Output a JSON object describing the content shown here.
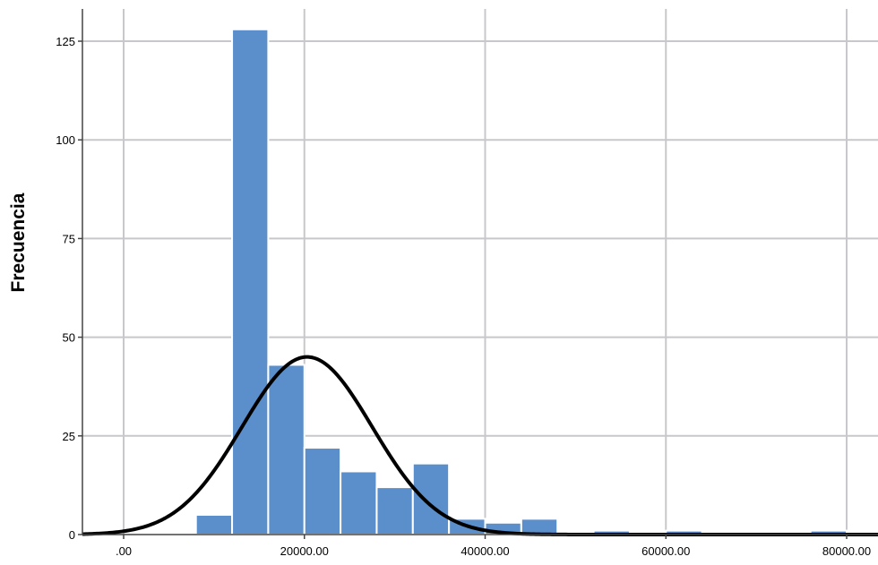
{
  "chart_data": {
    "type": "bar",
    "subtype": "histogram",
    "title": "",
    "xlabel": "",
    "ylabel": "Frecuencia",
    "xlim": [
      -4700,
      80000
    ],
    "ylim": [
      0,
      125
    ],
    "grid": true,
    "bar_color": "#5b8fcc",
    "bar_edge_color": "#ffffff",
    "curve_color": "#000000",
    "grid_color": "#c8c8cc",
    "x_ticks": [
      {
        "value": 0,
        "label": ".00"
      },
      {
        "value": 20000,
        "label": "20000.00"
      },
      {
        "value": 40000,
        "label": "40000.00"
      },
      {
        "value": 60000,
        "label": "60000.00"
      },
      {
        "value": 80000,
        "label": "80000.00"
      }
    ],
    "y_ticks": [
      {
        "value": 0,
        "label": "0"
      },
      {
        "value": 25,
        "label": "25"
      },
      {
        "value": 50,
        "label": "50"
      },
      {
        "value": 75,
        "label": "75"
      },
      {
        "value": 100,
        "label": "100"
      },
      {
        "value": 125,
        "label": "125"
      }
    ],
    "bins": [
      {
        "x0": 8000,
        "x1": 12000,
        "count": 5
      },
      {
        "x0": 12000,
        "x1": 16000,
        "count": 128
      },
      {
        "x0": 16000,
        "x1": 20000,
        "count": 43
      },
      {
        "x0": 20000,
        "x1": 24000,
        "count": 22
      },
      {
        "x0": 24000,
        "x1": 28000,
        "count": 16
      },
      {
        "x0": 28000,
        "x1": 32000,
        "count": 12
      },
      {
        "x0": 32000,
        "x1": 36000,
        "count": 18
      },
      {
        "x0": 36000,
        "x1": 40000,
        "count": 4
      },
      {
        "x0": 40000,
        "x1": 44000,
        "count": 3
      },
      {
        "x0": 44000,
        "x1": 48000,
        "count": 4
      },
      {
        "x0": 52000,
        "x1": 56000,
        "count": 1
      },
      {
        "x0": 60000,
        "x1": 64000,
        "count": 1
      },
      {
        "x0": 76000,
        "x1": 80000,
        "count": 1
      }
    ],
    "normal_curve": {
      "mean": 20300,
      "sd": 7200,
      "peak": 45
    }
  }
}
